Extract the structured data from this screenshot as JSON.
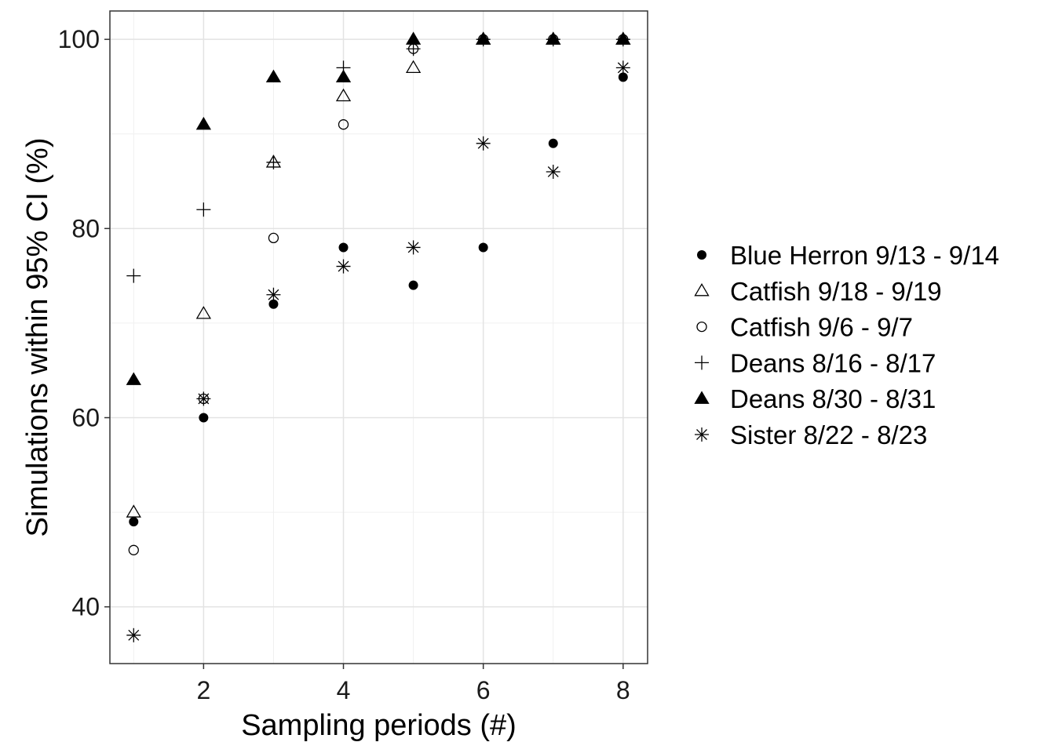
{
  "chart_data": {
    "type": "scatter",
    "xlabel": "Sampling periods (#)",
    "ylabel": "Simulations within 95% CI (%)",
    "xlim": [
      0.66,
      8.35
    ],
    "ylim": [
      34,
      103
    ],
    "x_ticks": [
      2,
      4,
      6,
      8
    ],
    "y_ticks": [
      40,
      60,
      80,
      100
    ],
    "x_tick_labels": [
      "2",
      "4",
      "6",
      "8"
    ],
    "y_tick_labels": [
      "40",
      "60",
      "80",
      "100"
    ],
    "grid": true,
    "legend_position": "right",
    "series": [
      {
        "name": "Blue Herron 9/13 - 9/14",
        "marker": "filled-circle",
        "color": "#000000",
        "x": [
          1,
          2,
          3,
          4,
          5,
          6,
          7,
          8
        ],
        "y": [
          49,
          60,
          72,
          78,
          74,
          78,
          89,
          96
        ]
      },
      {
        "name": "Catfish 9/18 - 9/19",
        "marker": "open-triangle",
        "color": "#000000",
        "x": [
          1,
          2,
          3,
          4,
          5,
          6,
          7,
          8
        ],
        "y": [
          50,
          71,
          87,
          94,
          97,
          100,
          100,
          100
        ]
      },
      {
        "name": "Catfish 9/6 - 9/7",
        "marker": "open-circle",
        "color": "#000000",
        "x": [
          1,
          2,
          3,
          4,
          5,
          6,
          7,
          8
        ],
        "y": [
          46,
          62,
          79,
          91,
          99,
          100,
          100,
          100
        ]
      },
      {
        "name": "Deans 8/16 - 8/17",
        "marker": "plus",
        "color": "#000000",
        "x": [
          1,
          2,
          3,
          4,
          5,
          6,
          7,
          8
        ],
        "y": [
          75,
          82,
          87,
          97,
          99,
          100,
          100,
          100
        ]
      },
      {
        "name": "Deans 8/30 - 8/31",
        "marker": "filled-triangle",
        "color": "#000000",
        "x": [
          1,
          2,
          3,
          4,
          5,
          6,
          7,
          8
        ],
        "y": [
          64,
          91,
          96,
          96,
          100,
          100,
          100,
          100
        ]
      },
      {
        "name": "Sister 8/22 - 8/23",
        "marker": "asterisk",
        "color": "#000000",
        "x": [
          1,
          2,
          3,
          4,
          5,
          6,
          7,
          8
        ],
        "y": [
          37,
          62,
          73,
          76,
          78,
          89,
          86,
          97
        ]
      }
    ]
  }
}
